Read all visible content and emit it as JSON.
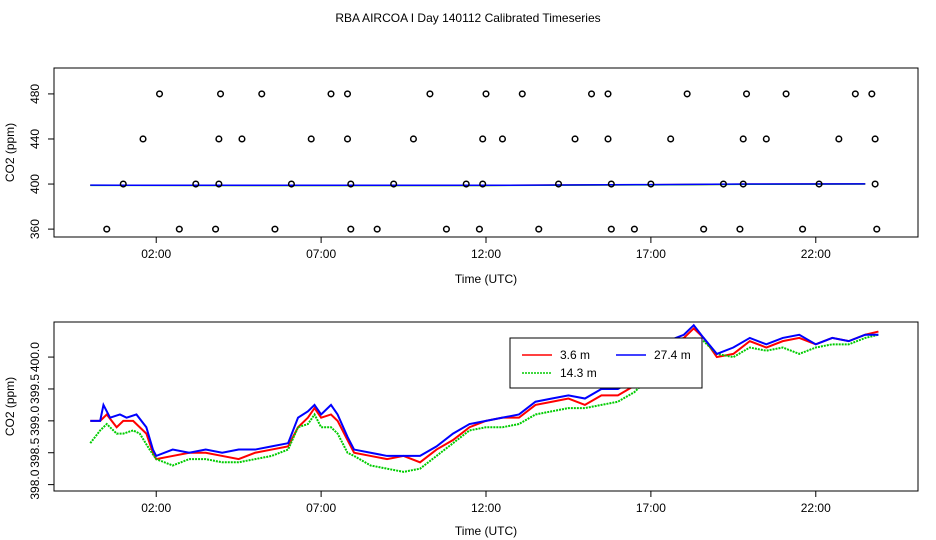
{
  "title": "RBA AIRCOA I  Day 140112  Calibrated Timeseries",
  "chart_data": [
    {
      "type": "scatter",
      "xlabel": "Time (UTC)",
      "ylabel": "CO2 (ppm)",
      "xlim": [
        -1.1,
        25.1
      ],
      "ylim": [
        353,
        503
      ],
      "x_ticks": [
        2,
        7,
        12,
        17,
        22
      ],
      "x_tick_labels": [
        "02:00",
        "07:00",
        "12:00",
        "17:00",
        "22:00"
      ],
      "y_ticks": [
        360,
        400,
        440,
        480
      ],
      "y_tick_labels": [
        "360",
        "400",
        "440",
        "480"
      ],
      "points": [
        [
          0.5,
          360
        ],
        [
          1.0,
          400
        ],
        [
          1.6,
          440
        ],
        [
          2.1,
          480
        ],
        [
          2.7,
          360
        ],
        [
          3.2,
          400
        ],
        [
          3.8,
          360
        ],
        [
          3.9,
          400
        ],
        [
          3.9,
          440
        ],
        [
          3.95,
          480
        ],
        [
          4.6,
          440
        ],
        [
          5.2,
          480
        ],
        [
          5.6,
          360
        ],
        [
          6.1,
          400
        ],
        [
          6.7,
          440
        ],
        [
          7.3,
          480
        ],
        [
          7.8,
          480
        ],
        [
          7.8,
          440
        ],
        [
          7.9,
          400
        ],
        [
          7.9,
          360
        ],
        [
          8.7,
          360
        ],
        [
          9.2,
          400
        ],
        [
          9.8,
          440
        ],
        [
          10.3,
          480
        ],
        [
          10.8,
          360
        ],
        [
          11.4,
          400
        ],
        [
          11.8,
          360
        ],
        [
          11.9,
          400
        ],
        [
          11.9,
          440
        ],
        [
          12.0,
          480
        ],
        [
          12.5,
          440
        ],
        [
          13.1,
          480
        ],
        [
          13.6,
          360
        ],
        [
          14.2,
          400
        ],
        [
          14.7,
          440
        ],
        [
          15.2,
          480
        ],
        [
          15.7,
          480
        ],
        [
          15.7,
          440
        ],
        [
          15.8,
          400
        ],
        [
          15.8,
          360
        ],
        [
          16.5,
          360
        ],
        [
          17.0,
          400
        ],
        [
          17.6,
          440
        ],
        [
          18.1,
          480
        ],
        [
          18.6,
          360
        ],
        [
          19.2,
          400
        ],
        [
          19.7,
          360
        ],
        [
          19.8,
          400
        ],
        [
          19.8,
          440
        ],
        [
          19.9,
          480
        ],
        [
          20.5,
          440
        ],
        [
          21.1,
          480
        ],
        [
          21.6,
          360
        ],
        [
          22.1,
          400
        ],
        [
          22.7,
          440
        ],
        [
          23.2,
          480
        ],
        [
          23.7,
          480
        ],
        [
          23.8,
          440
        ],
        [
          23.8,
          400
        ],
        [
          23.85,
          360
        ]
      ],
      "series": [
        {
          "color": "#ff0000",
          "values": [
            [
              0,
              398.9
            ],
            [
              6,
              398.8
            ],
            [
              12,
              398.8
            ],
            [
              17,
              399.4
            ],
            [
              20,
              399.9
            ],
            [
              23.5,
              400.1
            ]
          ]
        },
        {
          "color": "#00cc00",
          "values": [
            [
              0,
              398.8
            ],
            [
              6,
              398.7
            ],
            [
              12,
              398.7
            ],
            [
              17,
              399.3
            ],
            [
              20,
              399.8
            ],
            [
              23.5,
              400.0
            ]
          ]
        },
        {
          "color": "#0000ff",
          "values": [
            [
              0,
              399.0
            ],
            [
              6,
              398.9
            ],
            [
              12,
              398.9
            ],
            [
              17,
              399.5
            ],
            [
              20,
              400.0
            ],
            [
              23.5,
              400.2
            ]
          ]
        }
      ]
    },
    {
      "type": "line",
      "xlabel": "Time (UTC)",
      "ylabel": "CO2 (ppm)",
      "xlim": [
        -1.1,
        25.1
      ],
      "ylim": [
        397.9,
        400.55
      ],
      "x_ticks": [
        2,
        7,
        12,
        17,
        22
      ],
      "x_tick_labels": [
        "02:00",
        "07:00",
        "12:00",
        "17:00",
        "22:00"
      ],
      "y_ticks": [
        398.0,
        398.5,
        399.0,
        399.5,
        400.0
      ],
      "y_tick_labels": [
        "398.0",
        "398.5",
        "399.0",
        "399.5",
        "400.0"
      ],
      "legend_position": "top-right",
      "legend": [
        {
          "label": "3.6 m",
          "color": "#ff0000",
          "dashed": false
        },
        {
          "label": "14.3 m",
          "color": "#00cc00",
          "dashed": true
        },
        {
          "label": "27.4 m",
          "color": "#0000ff",
          "dashed": false
        }
      ],
      "series": [
        {
          "name": "3.6 m",
          "color": "#ff0000",
          "dashed": false,
          "x": [
            0,
            0.3,
            0.5,
            0.8,
            1.0,
            1.3,
            1.5,
            1.7,
            1.9,
            2.0,
            2.5,
            3.0,
            3.5,
            4.0,
            4.5,
            5.0,
            5.5,
            6.0,
            6.3,
            6.6,
            6.8,
            7.0,
            7.3,
            7.5,
            7.8,
            8.0,
            8.5,
            9.0,
            9.5,
            10.0,
            10.5,
            11.0,
            11.5,
            12.0,
            12.5,
            13.0,
            13.5,
            14.0,
            14.5,
            15.0,
            15.5,
            16.0,
            16.5,
            16.8,
            17.0,
            17.5,
            18.0,
            18.3,
            18.6,
            19.0,
            19.5,
            20.0,
            20.5,
            21.0,
            21.5,
            22.0,
            22.5,
            23.0,
            23.5,
            23.9
          ],
          "values": [
            399.0,
            399.0,
            399.1,
            398.9,
            399.0,
            399.0,
            398.9,
            398.8,
            398.5,
            398.4,
            398.45,
            398.5,
            398.5,
            398.45,
            398.4,
            398.5,
            398.55,
            398.6,
            398.9,
            399.05,
            399.2,
            399.05,
            399.1,
            399.0,
            398.7,
            398.5,
            398.45,
            398.4,
            398.45,
            398.35,
            398.55,
            398.7,
            398.9,
            399.0,
            399.05,
            399.05,
            399.25,
            399.3,
            399.35,
            399.25,
            399.4,
            399.4,
            399.55,
            399.8,
            400.0,
            400.2,
            400.3,
            400.45,
            400.3,
            400.0,
            400.05,
            400.25,
            400.15,
            400.25,
            400.3,
            400.2,
            400.3,
            400.25,
            400.35,
            400.4
          ]
        },
        {
          "name": "14.3 m",
          "color": "#00cc00",
          "dashed": true,
          "x": [
            0,
            0.3,
            0.5,
            0.8,
            1.0,
            1.3,
            1.5,
            1.8,
            2.0,
            2.5,
            3.0,
            3.5,
            4.0,
            4.5,
            5.0,
            5.5,
            6.0,
            6.3,
            6.6,
            6.8,
            7.0,
            7.3,
            7.5,
            7.8,
            8.0,
            8.5,
            9.0,
            9.5,
            10.0,
            10.5,
            11.0,
            11.5,
            12.0,
            12.5,
            13.0,
            13.5,
            14.0,
            14.5,
            15.0,
            15.5,
            16.0,
            16.5,
            16.8,
            17.0,
            17.5,
            18.0,
            18.3,
            18.6,
            19.0,
            19.5,
            20.0,
            20.5,
            21.0,
            21.5,
            22.0,
            22.5,
            23.0,
            23.5,
            23.9
          ],
          "values": [
            398.65,
            398.85,
            398.95,
            398.8,
            398.8,
            398.85,
            398.8,
            398.55,
            398.4,
            398.3,
            398.4,
            398.4,
            398.35,
            398.35,
            398.4,
            398.45,
            398.55,
            398.9,
            398.95,
            399.1,
            398.9,
            398.9,
            398.8,
            398.5,
            398.45,
            398.3,
            398.25,
            398.2,
            398.25,
            398.45,
            398.65,
            398.85,
            398.9,
            398.9,
            398.95,
            399.1,
            399.15,
            399.2,
            399.2,
            399.25,
            399.3,
            399.45,
            399.6,
            399.9,
            400.15,
            400.2,
            400.3,
            400.25,
            400.05,
            400.0,
            400.15,
            400.1,
            400.15,
            400.05,
            400.15,
            400.2,
            400.2,
            400.3,
            400.35
          ]
        },
        {
          "name": "27.4 m",
          "color": "#0000ff",
          "dashed": false,
          "x": [
            0,
            0.3,
            0.4,
            0.6,
            0.9,
            1.1,
            1.4,
            1.7,
            1.9,
            2.0,
            2.5,
            3.0,
            3.5,
            4.0,
            4.5,
            5.0,
            5.5,
            6.0,
            6.3,
            6.6,
            6.8,
            7.0,
            7.3,
            7.5,
            7.8,
            8.0,
            8.5,
            9.0,
            9.5,
            10.0,
            10.5,
            11.0,
            11.5,
            12.0,
            12.5,
            13.0,
            13.5,
            14.0,
            14.5,
            15.0,
            15.5,
            16.0,
            16.5,
            16.8,
            17.0,
            17.5,
            18.0,
            18.3,
            18.6,
            19.0,
            19.5,
            20.0,
            20.5,
            21.0,
            21.5,
            22.0,
            22.5,
            23.0,
            23.5,
            23.9
          ],
          "values": [
            399.0,
            399.0,
            399.25,
            399.05,
            399.1,
            399.05,
            399.1,
            398.9,
            398.55,
            398.45,
            398.55,
            398.5,
            398.55,
            398.5,
            398.55,
            398.55,
            398.6,
            398.65,
            399.05,
            399.15,
            399.25,
            399.1,
            399.25,
            399.1,
            398.75,
            398.55,
            398.5,
            398.45,
            398.45,
            398.45,
            398.6,
            398.8,
            398.95,
            399.0,
            399.05,
            399.1,
            399.3,
            399.35,
            399.4,
            399.35,
            399.5,
            399.5,
            399.65,
            399.9,
            400.15,
            400.25,
            400.35,
            400.5,
            400.3,
            400.05,
            400.15,
            400.3,
            400.2,
            400.3,
            400.35,
            400.2,
            400.3,
            400.25,
            400.35,
            400.35
          ]
        }
      ]
    }
  ]
}
